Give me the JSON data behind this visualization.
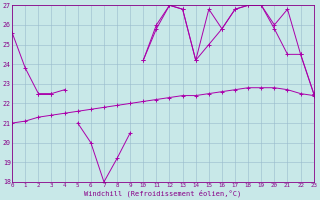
{
  "xlabel": "Windchill (Refroidissement éolien,°C)",
  "background_color": "#c8e8e8",
  "line_color": "#aa00aa",
  "xlim": [
    0,
    23
  ],
  "ylim": [
    18,
    27
  ],
  "yticks": [
    18,
    19,
    20,
    21,
    22,
    23,
    24,
    25,
    26,
    27
  ],
  "xticks": [
    0,
    1,
    2,
    3,
    4,
    5,
    6,
    7,
    8,
    9,
    10,
    11,
    12,
    13,
    14,
    15,
    16,
    17,
    18,
    19,
    20,
    21,
    22,
    23
  ],
  "series": [
    [
      25.6,
      23.8,
      22.5,
      22.5,
      22.7,
      null,
      null,
      null,
      null,
      null,
      24.2,
      25.8,
      27.0,
      26.8,
      24.2,
      25.0,
      25.8,
      26.8,
      27.0,
      27.0,
      26.0,
      26.8,
      24.5,
      22.5
    ],
    [
      null,
      null,
      null,
      null,
      null,
      null,
      null,
      null,
      null,
      null,
      24.2,
      26.0,
      27.0,
      26.8,
      24.2,
      26.8,
      25.8,
      26.8,
      27.0,
      27.0,
      25.8,
      24.5,
      24.5,
      22.5
    ],
    [
      null,
      null,
      22.5,
      22.5,
      null,
      21.0,
      20.0,
      18.0,
      19.2,
      20.5,
      null,
      null,
      null,
      null,
      null,
      null,
      null,
      null,
      null,
      null,
      null,
      null,
      null,
      null
    ],
    [
      21.0,
      21.1,
      21.3,
      21.4,
      21.5,
      21.6,
      21.7,
      21.8,
      21.9,
      22.0,
      22.1,
      22.2,
      22.3,
      22.4,
      22.4,
      22.5,
      22.6,
      22.7,
      22.8,
      22.8,
      22.8,
      22.7,
      22.5,
      22.4
    ]
  ]
}
